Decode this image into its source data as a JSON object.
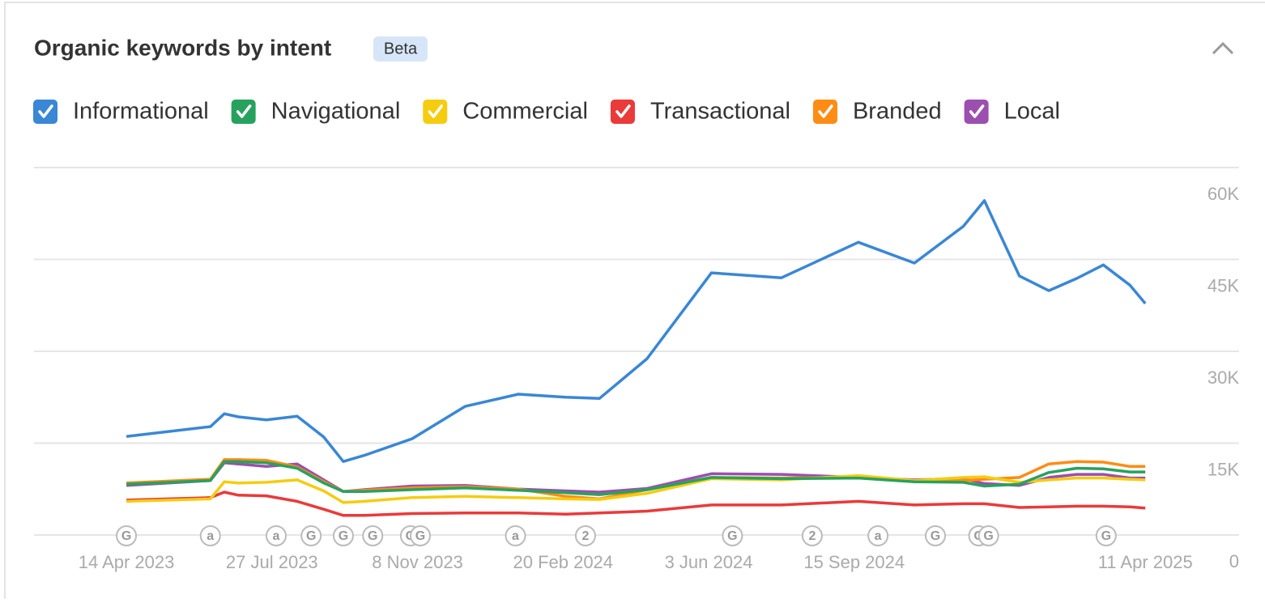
{
  "header": {
    "title": "Organic keywords by intent",
    "badge": "Beta"
  },
  "chart_data": {
    "type": "line",
    "x": [
      "2023-04-14",
      "2023-06-13",
      "2023-06-23",
      "2023-07-03",
      "2023-07-23",
      "2023-08-14",
      "2023-09-02",
      "2023-09-16",
      "2023-10-01",
      "2023-11-04",
      "2023-12-12",
      "2024-01-19",
      "2024-02-22",
      "2024-03-17",
      "2024-04-20",
      "2024-06-05",
      "2024-07-25",
      "2024-09-18",
      "2024-10-28",
      "2024-12-02",
      "2024-12-17",
      "2025-01-11",
      "2025-02-01",
      "2025-02-21",
      "2025-03-12",
      "2025-03-31",
      "2025-04-11"
    ],
    "series": [
      {
        "name": "Informational",
        "color": "#3a87d5",
        "values": [
          16100,
          17700,
          19800,
          19300,
          18800,
          19400,
          16000,
          12000,
          13000,
          15700,
          21000,
          23000,
          22500,
          22300,
          28800,
          42800,
          42000,
          47800,
          44400,
          50400,
          54600,
          42300,
          39900,
          41900,
          44100,
          40800,
          37800
        ]
      },
      {
        "name": "Navigational",
        "color": "#27a25e",
        "values": [
          8300,
          8900,
          12000,
          12000,
          11800,
          10900,
          8500,
          7100,
          7100,
          7400,
          7700,
          7300,
          6900,
          6600,
          7400,
          9400,
          9200,
          9300,
          8700,
          8600,
          8000,
          8300,
          10200,
          10900,
          10800,
          10300,
          10300
        ]
      },
      {
        "name": "Commercial",
        "color": "#f5cc10",
        "values": [
          5500,
          5900,
          8700,
          8500,
          8600,
          9000,
          7200,
          5300,
          5500,
          6100,
          6300,
          6100,
          5900,
          5800,
          6800,
          9200,
          9000,
          9700,
          8900,
          9400,
          9500,
          8600,
          9000,
          9300,
          9300,
          9100,
          9000
        ]
      },
      {
        "name": "Transactional",
        "color": "#ea3a3a",
        "values": [
          5700,
          6100,
          7000,
          6500,
          6400,
          5500,
          4200,
          3200,
          3200,
          3500,
          3600,
          3600,
          3400,
          3600,
          3900,
          4900,
          4900,
          5500,
          4900,
          5100,
          5100,
          4500,
          4600,
          4700,
          4700,
          4600,
          4400
        ]
      },
      {
        "name": "Branded",
        "color": "#ff8c14",
        "values": [
          8500,
          9100,
          12300,
          12300,
          12200,
          11100,
          8700,
          7100,
          7300,
          7700,
          7900,
          7500,
          6300,
          5900,
          7400,
          9400,
          9300,
          9400,
          8900,
          8900,
          9100,
          9400,
          11600,
          12000,
          11900,
          11200,
          11200
        ]
      },
      {
        "name": "Local",
        "color": "#9b4fb0",
        "values": [
          8100,
          8900,
          11800,
          11600,
          11200,
          11600,
          9000,
          7100,
          7400,
          8000,
          8100,
          7500,
          7200,
          7000,
          7600,
          10000,
          9900,
          9400,
          9000,
          9200,
          8400,
          8100,
          9400,
          9900,
          9900,
          9300,
          9300
        ]
      }
    ],
    "xlim": [
      "2023-02-07",
      "2025-06-17"
    ],
    "xticks": [
      {
        "value": "2023-04-14",
        "label": "14 Apr 2023"
      },
      {
        "value": "2023-07-27",
        "label": "27 Jul 2023"
      },
      {
        "value": "2023-11-08",
        "label": "8 Nov 2023"
      },
      {
        "value": "2024-02-20",
        "label": "20 Feb 2024"
      },
      {
        "value": "2024-06-03",
        "label": "3 Jun 2024"
      },
      {
        "value": "2024-09-15",
        "label": "15 Sep 2024"
      },
      {
        "value": "2025-04-11",
        "label": "11 Apr 2025"
      }
    ],
    "ylim": [
      0,
      60000
    ],
    "yticks": [
      0,
      {
        "value": 15000,
        "label": "15K"
      },
      {
        "value": 30000,
        "label": "30K"
      },
      {
        "value": 45000,
        "label": "45K"
      },
      {
        "value": 60000,
        "label": "60K"
      }
    ],
    "grid": true,
    "events": [
      {
        "date": "2023-04-14",
        "label": "G"
      },
      {
        "date": "2023-06-13",
        "label": "a"
      },
      {
        "date": "2023-07-30",
        "label": "a"
      },
      {
        "date": "2023-08-24",
        "label": "G"
      },
      {
        "date": "2023-09-16",
        "label": "G"
      },
      {
        "date": "2023-10-07",
        "label": "G"
      },
      {
        "date": "2023-11-03",
        "label": "G"
      },
      {
        "date": "2023-11-10",
        "label": "G"
      },
      {
        "date": "2024-01-17",
        "label": "a"
      },
      {
        "date": "2024-03-07",
        "label": "2"
      },
      {
        "date": "2024-06-20",
        "label": "G"
      },
      {
        "date": "2024-08-16",
        "label": "2"
      },
      {
        "date": "2024-10-02",
        "label": "a"
      },
      {
        "date": "2024-11-12",
        "label": "G"
      },
      {
        "date": "2024-12-13",
        "label": "G"
      },
      {
        "date": "2024-12-20",
        "label": "G"
      },
      {
        "date": "2025-03-14",
        "label": "G"
      }
    ]
  }
}
